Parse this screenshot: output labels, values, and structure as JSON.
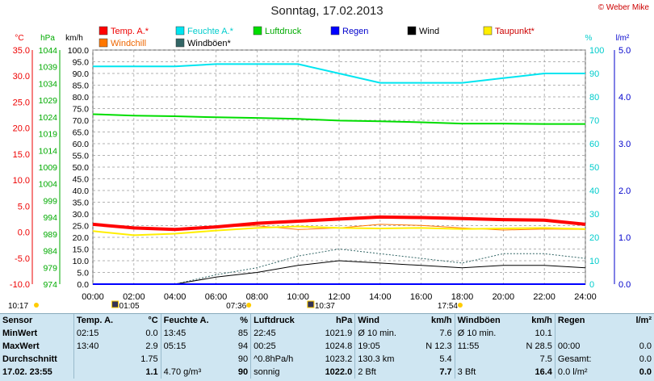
{
  "title": "Sonntag, 17.02.2013",
  "credit": "© Weber Mike",
  "axis_units": {
    "temp": "°C",
    "pres": "hPa",
    "wind": "km/h",
    "hum": "%",
    "rain": "l/m²"
  },
  "legend": [
    {
      "label": "Temp. A.*",
      "color": "#ff0000"
    },
    {
      "label": "Feuchte A.*",
      "color": "#00e5f0"
    },
    {
      "label": "Luftdruck",
      "color": "#00dd00"
    },
    {
      "label": "Regen",
      "color": "#0000ff"
    },
    {
      "label": "Wind",
      "color": "#000000"
    },
    {
      "label": "Taupunkt*",
      "color": "#ffee00"
    },
    {
      "label": "Windchill",
      "color": "#ff7700"
    },
    {
      "label": "Windböen*",
      "color": "#336666"
    }
  ],
  "left_ticks": {
    "temp": [
      "35.0",
      "30.0",
      "25.0",
      "20.0",
      "15.0",
      "10.0",
      "5.0",
      "0.0",
      "-5.0",
      "-10.0"
    ],
    "pres": [
      "1044",
      "1039",
      "1034",
      "1029",
      "1024",
      "1019",
      "1014",
      "1009",
      "1004",
      "999",
      "994",
      "989",
      "984",
      "979",
      "974"
    ],
    "wind": [
      "100.0",
      "95.0",
      "90.0",
      "85.0",
      "80.0",
      "75.0",
      "70.0",
      "65.0",
      "60.0",
      "55.0",
      "50.0",
      "45.0",
      "40.0",
      "35.0",
      "30.0",
      "25.0",
      "20.0",
      "15.0",
      "10.0",
      "5.0",
      "0.0"
    ]
  },
  "right_ticks": {
    "hum": [
      "100",
      "90",
      "80",
      "70",
      "60",
      "50",
      "40",
      "30",
      "20",
      "10",
      "0"
    ],
    "rain": [
      "5.0",
      "4.0",
      "3.0",
      "2.0",
      "1.0",
      "0.0"
    ]
  },
  "sun_marks": {
    "sunrise": "07:36",
    "sunset": "17:54",
    "moonrise": "10:37",
    "moonset": "01:05",
    "time": "10:17"
  },
  "chart_data": {
    "type": "line",
    "title": "Sonntag, 17.02.2013",
    "x": [
      "00:00",
      "02:00",
      "04:00",
      "06:00",
      "08:00",
      "10:00",
      "12:00",
      "14:00",
      "16:00",
      "18:00",
      "20:00",
      "22:00",
      "24:00"
    ],
    "series": [
      {
        "name": "Temp. A.*",
        "unit": "°C",
        "values": [
          1.5,
          0.8,
          0.5,
          1.0,
          1.7,
          2.1,
          2.5,
          2.9,
          2.8,
          2.6,
          2.4,
          2.3,
          1.5
        ]
      },
      {
        "name": "Feuchte A.*",
        "unit": "%",
        "values": [
          93,
          93,
          93,
          94,
          94,
          94,
          90,
          86,
          86,
          86,
          88,
          90,
          90
        ]
      },
      {
        "name": "Luftdruck",
        "unit": "hPa",
        "values": [
          1024.8,
          1024.4,
          1024.2,
          1023.9,
          1023.7,
          1023.4,
          1022.9,
          1022.7,
          1022.4,
          1022.0,
          1022.0,
          1021.9,
          1021.9
        ]
      },
      {
        "name": "Regen",
        "unit": "l/m²",
        "values": [
          0,
          0,
          0,
          0,
          0,
          0,
          0,
          0,
          0,
          0,
          0,
          0,
          0
        ]
      },
      {
        "name": "Wind",
        "unit": "km/h",
        "values": [
          0,
          0,
          0,
          3,
          5,
          8,
          10,
          9,
          8,
          7,
          8,
          8,
          7
        ]
      },
      {
        "name": "Taupunkt*",
        "unit": "°C",
        "values": [
          0.2,
          -0.6,
          -0.3,
          0.3,
          0.8,
          1.1,
          0.8,
          0.7,
          0.8,
          0.6,
          0.7,
          0.8,
          0.6
        ]
      },
      {
        "name": "Windchill",
        "unit": "°C",
        "values": [
          1.5,
          0.8,
          0.5,
          1.0,
          1.2,
          0.5,
          0.8,
          1.5,
          1.3,
          0.8,
          0.4,
          0.6,
          0.5
        ]
      },
      {
        "name": "Windböen*",
        "unit": "km/h",
        "values": [
          0,
          0,
          0,
          4,
          7,
          12,
          15,
          13,
          11,
          9,
          13,
          13,
          11
        ]
      }
    ],
    "ylim_temp": [
      -10,
      35
    ],
    "ylim_pres": [
      974,
      1044
    ],
    "ylim_wind": [
      0,
      100
    ],
    "ylim_hum": [
      0,
      100
    ],
    "ylim_rain": [
      0,
      5
    ],
    "grid": true,
    "legend": "top"
  },
  "table": {
    "headers": [
      "Sensor",
      "Temp. A.",
      "°C",
      "Feuchte A.",
      "%",
      "Luftdruck",
      "hPa",
      "Wind",
      "km/h",
      "Windböen",
      "km/h",
      "Regen",
      "l/m²"
    ],
    "rows": [
      [
        "MinWert",
        "02:15",
        "0.0",
        "13:45",
        "85",
        "22:45",
        "1021.9",
        "Ø 10 min.",
        "7.6",
        "Ø 10 min.",
        "10.1",
        "",
        ""
      ],
      [
        "MaxWert",
        "13:40",
        "2.9",
        "05:15",
        "94",
        "00:25",
        "1024.8",
        "19:05",
        "N 12.3",
        "11:55",
        "N 28.5",
        "00:00",
        "0.0"
      ],
      [
        "Durchschnitt",
        "",
        "1.75",
        "",
        "90",
        "^0.8hPa/h",
        "1023.2",
        "130.3 km",
        "5.4",
        "",
        "7.5",
        "Gesamt:",
        "0.0"
      ],
      [
        "17.02. 23:55",
        "",
        "1.1",
        "4.70 g/m³",
        "90",
        "sonnig",
        "1022.0",
        "2 Bft",
        "7.7",
        "3 Bft",
        "16.4",
        "0.0 l/m²",
        "0.0"
      ]
    ]
  }
}
